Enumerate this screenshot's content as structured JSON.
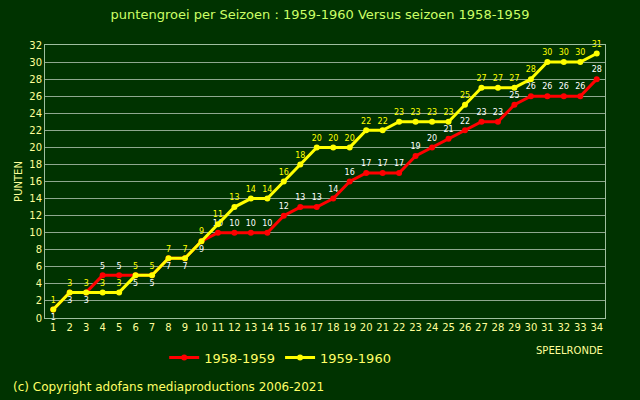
{
  "chart_data": {
    "type": "line",
    "title": "puntengroei per Seizoen : 1959-1960 Versus seizoen 1958-1959",
    "x_label": "SPEELRONDE",
    "y_label": "PUNTEN",
    "annotations": [
      "(c) Copyright adofans mediaproductions 2006-2021"
    ],
    "x": [
      1,
      2,
      3,
      4,
      5,
      6,
      7,
      8,
      9,
      10,
      11,
      12,
      13,
      14,
      15,
      16,
      17,
      18,
      19,
      20,
      21,
      22,
      23,
      24,
      25,
      26,
      27,
      28,
      29,
      30,
      31,
      32,
      33,
      34
    ],
    "series": [
      {
        "name": "1958-1959",
        "color": "#ff0000",
        "marker": "circle",
        "values": [
          1,
          3,
          3,
          5,
          5,
          5,
          5,
          7,
          7,
          9,
          10,
          10,
          10,
          10,
          12,
          13,
          13,
          14,
          16,
          17,
          17,
          17,
          19,
          20,
          21,
          22,
          23,
          23,
          25,
          26,
          26,
          26,
          26,
          28
        ]
      },
      {
        "name": "1959-1960",
        "color": "#ffff00",
        "marker": "circle",
        "values": [
          1,
          3,
          3,
          3,
          3,
          5,
          5,
          7,
          7,
          9,
          11,
          13,
          14,
          14,
          16,
          18,
          20,
          20,
          20,
          22,
          22,
          23,
          23,
          23,
          23,
          25,
          27,
          27,
          27,
          28,
          30,
          30,
          30,
          31
        ]
      }
    ],
    "xlim": [
      0.5,
      34.5
    ],
    "xticks": [
      1,
      2,
      3,
      4,
      5,
      6,
      7,
      8,
      9,
      10,
      11,
      12,
      13,
      14,
      15,
      16,
      17,
      18,
      19,
      20,
      21,
      22,
      23,
      24,
      25,
      26,
      27,
      28,
      29,
      30,
      31,
      32,
      33,
      34
    ],
    "ylim": [
      0,
      32
    ],
    "yticks": [
      0,
      2,
      4,
      6,
      8,
      10,
      12,
      14,
      16,
      18,
      20,
      22,
      24,
      26,
      28,
      30,
      32
    ],
    "grid": true,
    "legend": "bottom",
    "data_labels": true
  }
}
